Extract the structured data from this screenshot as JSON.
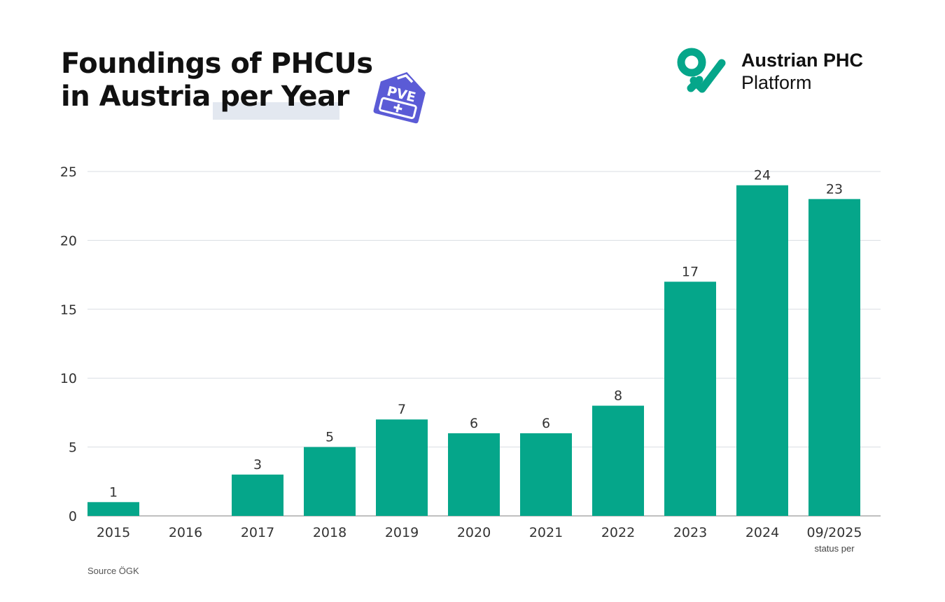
{
  "header": {
    "title_line1": "Foundings of PHCUs",
    "title_line2": "in Austria per Year",
    "badge_text": "PVE"
  },
  "brand": {
    "name_line1": "Austrian PHC",
    "name_line2": "Platform",
    "color": "#05a68a"
  },
  "footer": {
    "source": "Source ÖGK"
  },
  "chart_data": {
    "type": "bar",
    "categories": [
      "2015",
      "2016",
      "2017",
      "2018",
      "2019",
      "2020",
      "2021",
      "2022",
      "2023",
      "2024",
      "09/2025"
    ],
    "category_sublabels": [
      "",
      "",
      "",
      "",
      "",
      "",
      "",
      "",
      "",
      "",
      "status per"
    ],
    "values": [
      1,
      0,
      3,
      5,
      7,
      6,
      6,
      8,
      17,
      24,
      23
    ],
    "data_labels": [
      "1",
      "",
      "3",
      "5",
      "7",
      "6",
      "6",
      "8",
      "17",
      "24",
      "23"
    ],
    "ylim": [
      0,
      25
    ],
    "yticks": [
      0,
      5,
      10,
      15,
      20,
      25
    ],
    "grid": true,
    "bar_color": "#05a68a"
  }
}
